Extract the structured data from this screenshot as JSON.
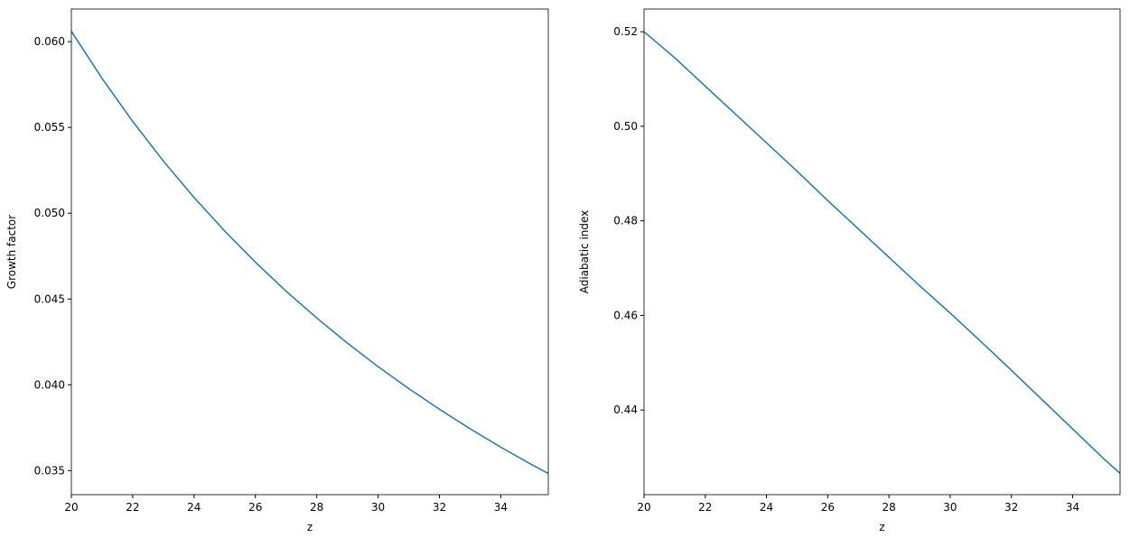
{
  "chart_data": [
    {
      "type": "line",
      "xlabel": "z",
      "ylabel": "Growth factor",
      "x": [
        20,
        21,
        22,
        23,
        24,
        25,
        26,
        27,
        28,
        29,
        30,
        31,
        32,
        33,
        34,
        35,
        35.55
      ],
      "series": [
        {
          "color": "#1f77b4",
          "values": [
            0.0606,
            0.05786,
            0.05535,
            0.05304,
            0.05092,
            0.04896,
            0.04715,
            0.04546,
            0.0439,
            0.04243,
            0.04106,
            0.03978,
            0.03858,
            0.03744,
            0.03637,
            0.03536,
            0.03483
          ]
        }
      ],
      "xlim": [
        20,
        35.55
      ],
      "xticks": [
        20,
        22,
        24,
        26,
        28,
        30,
        32,
        34
      ],
      "ylim": [
        0.0336,
        0.0619
      ],
      "yticks": [
        0.035,
        0.04,
        0.045,
        0.05,
        0.055,
        0.06
      ],
      "ytick_labels": [
        "0.035",
        "0.040",
        "0.045",
        "0.050",
        "0.055",
        "0.060"
      ]
    },
    {
      "type": "line",
      "xlabel": "z",
      "ylabel": "Adiabatic index",
      "x": [
        20,
        21,
        22,
        23,
        24,
        25,
        26,
        27,
        28,
        29,
        30,
        31,
        32,
        33,
        34,
        35,
        35.55
      ],
      "series": [
        {
          "color": "#1f77b4",
          "values": [
            0.52,
            0.5145,
            0.5085,
            0.5025,
            0.4965,
            0.4905,
            0.4843,
            0.4783,
            0.4723,
            0.4663,
            0.4605,
            0.4545,
            0.4484,
            0.4422,
            0.436,
            0.4298,
            0.4266
          ]
        }
      ],
      "xlim": [
        20,
        35.55
      ],
      "xticks": [
        20,
        22,
        24,
        26,
        28,
        30,
        32,
        34
      ],
      "ylim": [
        0.4221,
        0.5248
      ],
      "yticks": [
        0.44,
        0.46,
        0.48,
        0.5,
        0.52
      ],
      "ytick_labels": [
        "0.44",
        "0.46",
        "0.48",
        "0.50",
        "0.52"
      ]
    }
  ]
}
